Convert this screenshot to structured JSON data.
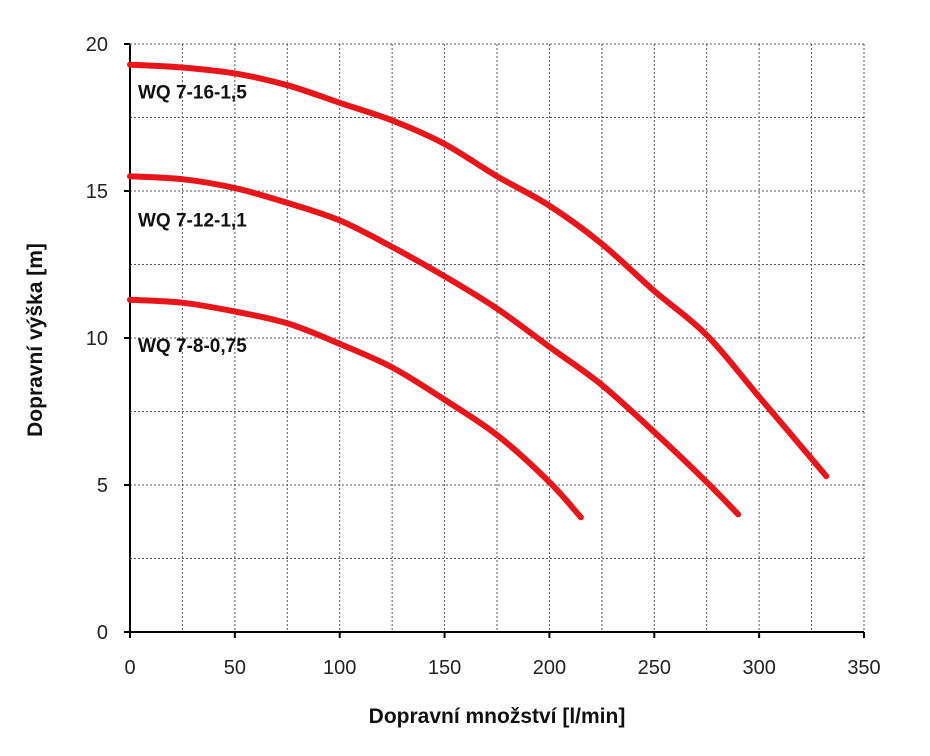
{
  "chart_data": {
    "type": "line",
    "title": "",
    "xlabel": "Dopravní množství [l/min]",
    "ylabel": "Dopravní výška [m]",
    "xlim": [
      0,
      350
    ],
    "ylim": [
      0,
      20
    ],
    "x_ticks": [
      0,
      50,
      100,
      150,
      200,
      250,
      300,
      350
    ],
    "y_ticks": [
      0,
      5,
      10,
      15,
      20
    ],
    "x_grid_step": 25,
    "y_grid_step": 2.5,
    "grid": true,
    "line_color": "#e8161b",
    "series": [
      {
        "name": "WQ 7-16-1,5",
        "x": [
          0,
          25,
          50,
          75,
          100,
          125,
          150,
          175,
          200,
          225,
          250,
          275,
          300,
          332
        ],
        "y": [
          19.3,
          19.2,
          19.0,
          18.6,
          18.0,
          17.4,
          16.6,
          15.5,
          14.5,
          13.2,
          11.6,
          10.1,
          8.0,
          5.3
        ]
      },
      {
        "name": "WQ 7-12-1,1",
        "x": [
          0,
          25,
          50,
          75,
          100,
          125,
          150,
          175,
          200,
          225,
          250,
          275,
          290
        ],
        "y": [
          15.5,
          15.4,
          15.1,
          14.6,
          14.0,
          13.1,
          12.1,
          11.0,
          9.7,
          8.4,
          6.8,
          5.1,
          4.0
        ]
      },
      {
        "name": "WQ 7-8-0,75",
        "x": [
          0,
          25,
          50,
          75,
          100,
          125,
          150,
          175,
          200,
          215
        ],
        "y": [
          11.3,
          11.2,
          10.9,
          10.5,
          9.8,
          9.0,
          7.9,
          6.7,
          5.1,
          3.9
        ]
      }
    ]
  }
}
